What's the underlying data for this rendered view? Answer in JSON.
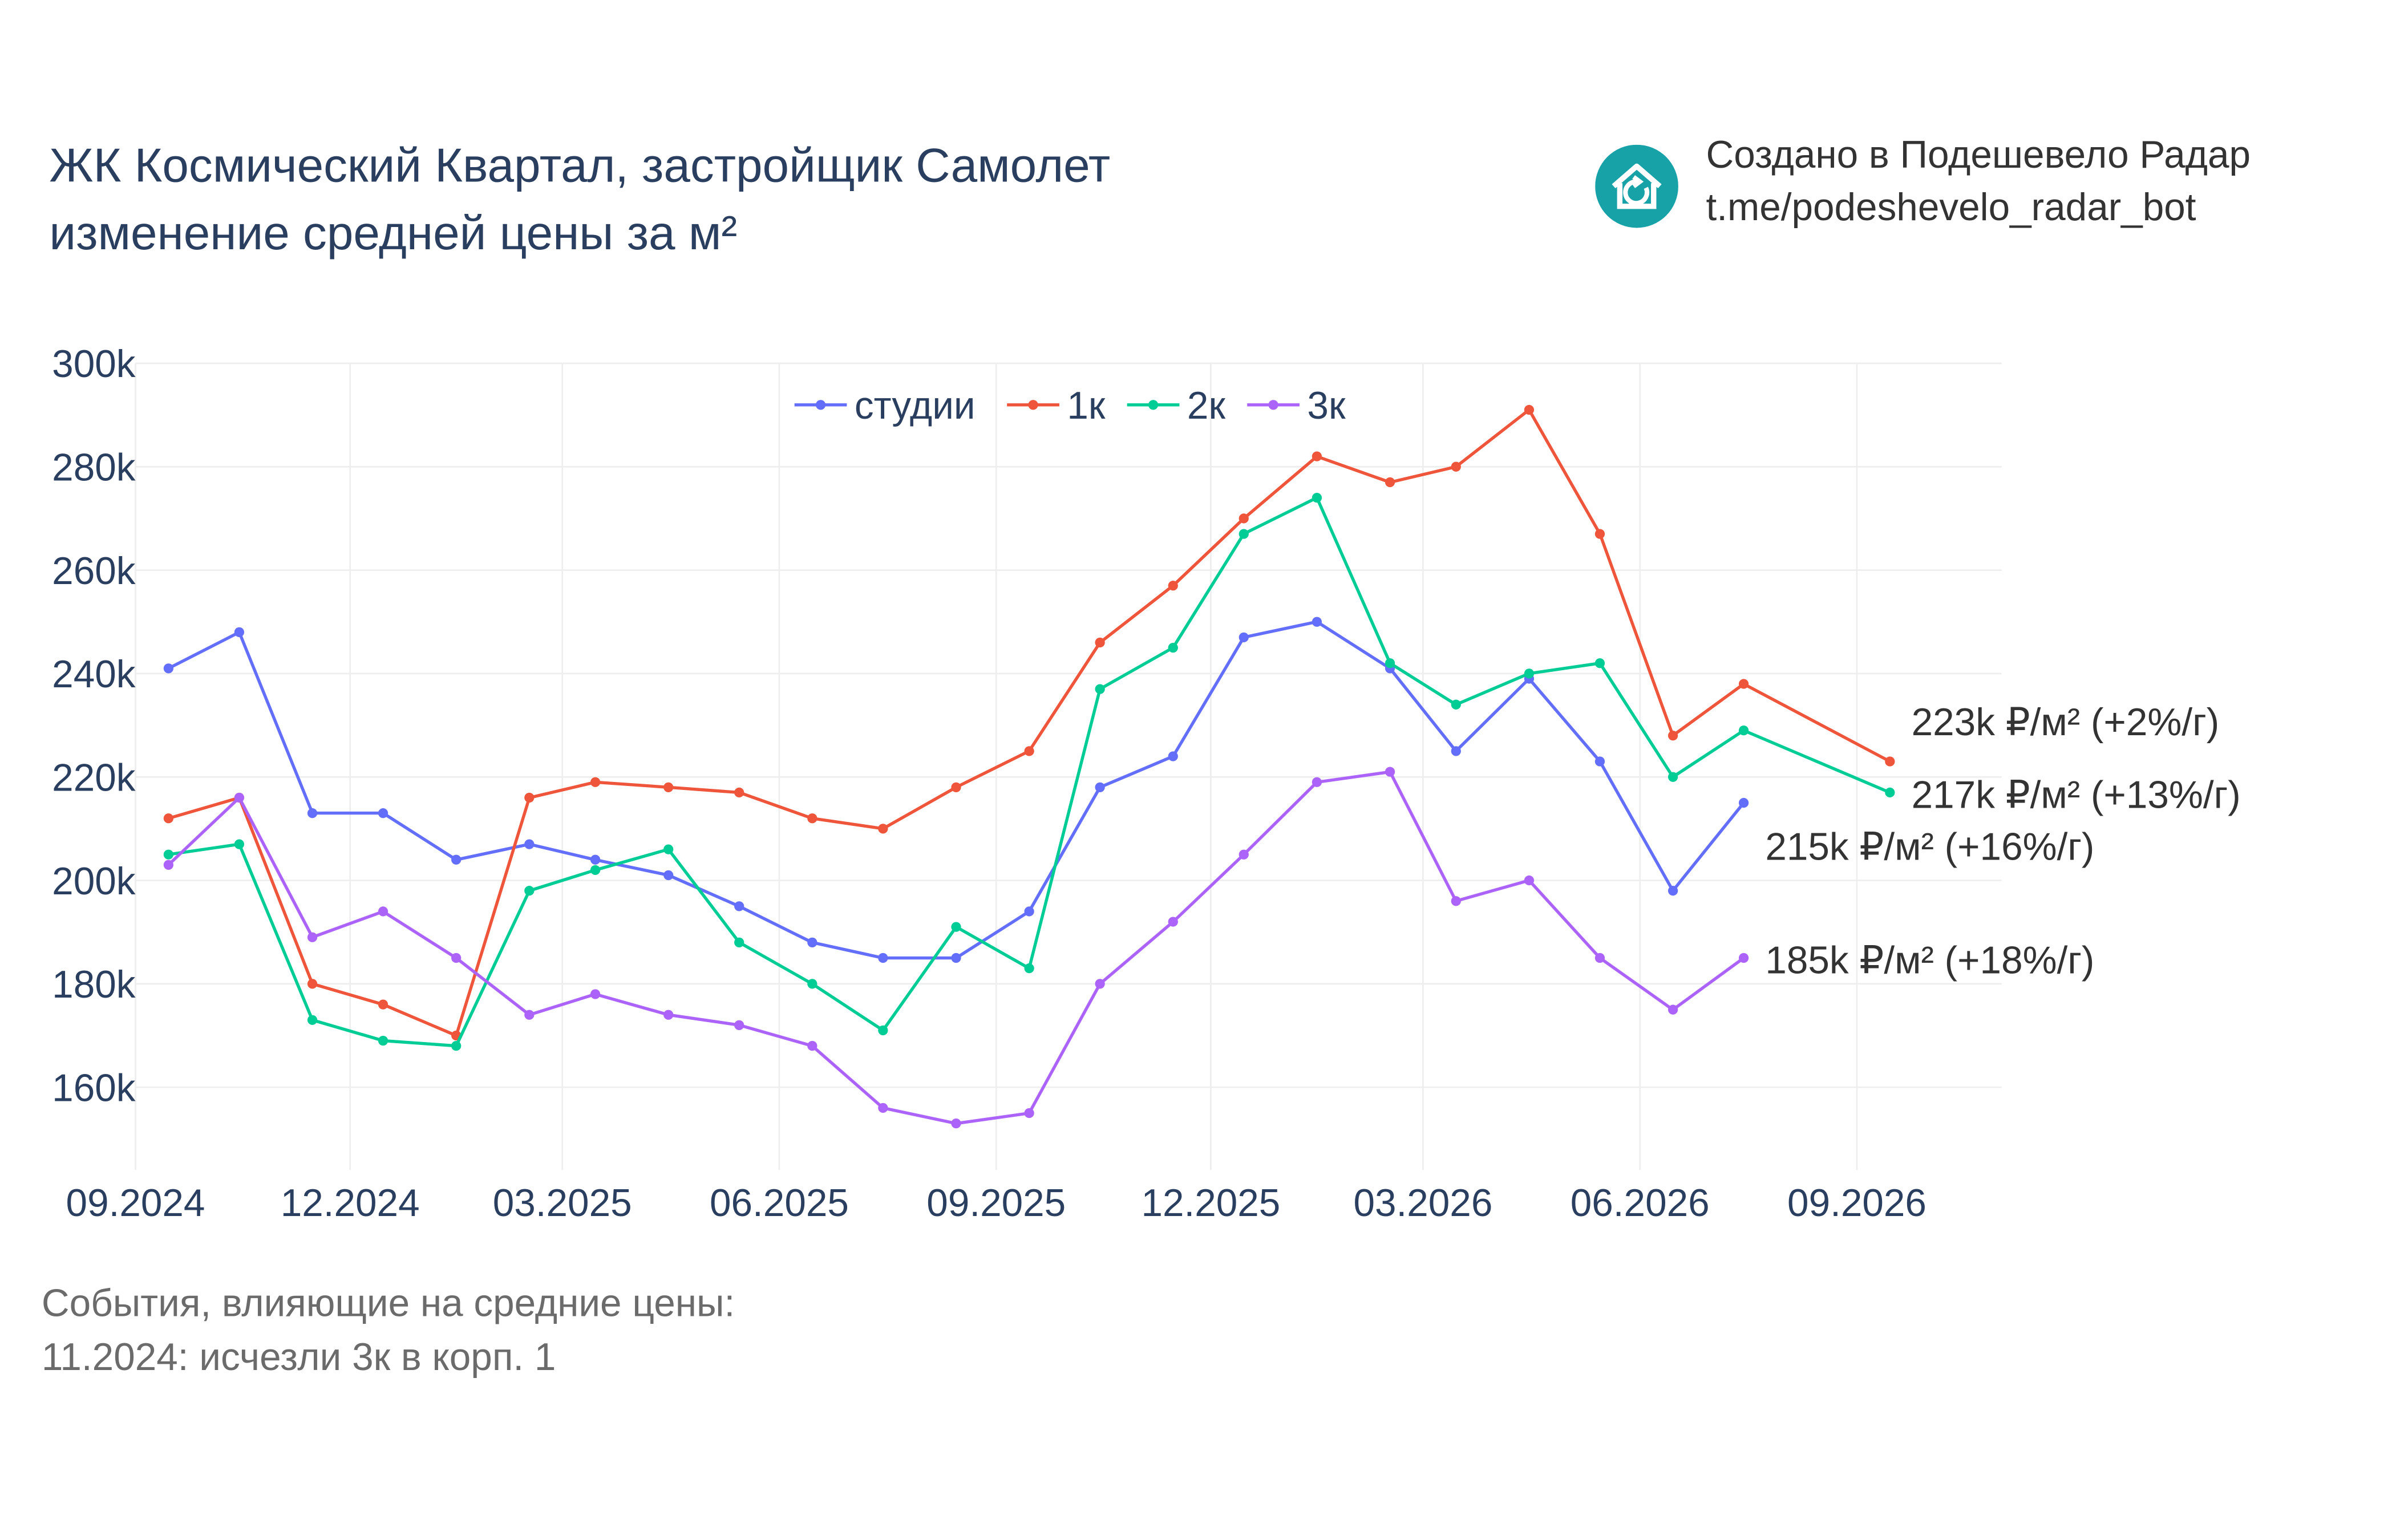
{
  "title": {
    "line1": "ЖК Космический Квартал, застройщик Самолет",
    "line2": "изменение средней цены за м²"
  },
  "brand": {
    "line1": "Создано в Подешевело Радар",
    "line2": "t.me/podeshevelo_radar_bot",
    "logo_icon": "house-refresh-icon",
    "color": "#17a2a8"
  },
  "events": {
    "heading": "События, влияющие на средние цены:",
    "items": [
      "11.2024: исчезли 3к в корп. 1"
    ]
  },
  "chart_data": {
    "type": "line",
    "x": [
      "2024-09-15",
      "2024-10-15",
      "2024-11-15",
      "2024-12-15",
      "2025-01-15",
      "2025-02-15",
      "2025-03-15",
      "2025-04-15",
      "2025-05-15",
      "2025-06-15",
      "2025-07-15",
      "2025-08-15",
      "2025-09-15",
      "2025-10-15",
      "2025-11-15",
      "2025-12-15",
      "2026-01-15",
      "2026-02-15",
      "2026-03-15",
      "2026-04-15",
      "2026-05-15",
      "2026-06-15",
      "2026-07-15",
      "2026-08-15",
      "2026-09-15"
    ],
    "x_ticks": [
      "09.2024",
      "12.2024",
      "03.2025",
      "06.2025",
      "09.2025",
      "12.2025",
      "03.2026",
      "06.2026",
      "09.2026"
    ],
    "y_ticks": [
      "300k",
      "280k",
      "260k",
      "240k",
      "220k",
      "200k",
      "180k",
      "160k"
    ],
    "y_tick_values": [
      300000,
      280000,
      260000,
      240000,
      220000,
      200000,
      180000,
      160000
    ],
    "xlim": [
      "2024-09-01",
      "2026-09-01"
    ],
    "ylim": [
      144000,
      300000
    ],
    "grid": true,
    "legend_position": "top-center",
    "series": [
      {
        "name": "студии",
        "color": "#636efa",
        "values": [
          241000,
          248000,
          213000,
          213000,
          204000,
          207000,
          204000,
          201000,
          195000,
          188000,
          185000,
          185000,
          194000,
          218000,
          224000,
          247000,
          250000,
          241000,
          225000,
          239000,
          223000,
          198000,
          215000,
          null,
          null
        ],
        "end_label": "215k ₽/м² (+16%/г)"
      },
      {
        "name": "1к",
        "color": "#ef553b",
        "values": [
          212000,
          216000,
          180000,
          176000,
          170000,
          216000,
          219000,
          218000,
          217000,
          212000,
          210000,
          218000,
          225000,
          246000,
          257000,
          270000,
          282000,
          277000,
          280000,
          291000,
          267000,
          228000,
          238000,
          null,
          223000
        ],
        "end_label": "223k ₽/м² (+2%/г)"
      },
      {
        "name": "2к",
        "color": "#00cc96",
        "values": [
          205000,
          207000,
          173000,
          169000,
          168000,
          198000,
          202000,
          206000,
          188000,
          180000,
          171000,
          191000,
          183000,
          237000,
          245000,
          267000,
          274000,
          242000,
          234000,
          240000,
          242000,
          220000,
          229000,
          null,
          217000
        ],
        "end_label": "217k ₽/м² (+13%/г)"
      },
      {
        "name": "3к",
        "color": "#ab63fa",
        "values": [
          203000,
          216000,
          189000,
          194000,
          185000,
          174000,
          178000,
          174000,
          172000,
          168000,
          156000,
          153000,
          155000,
          180000,
          192000,
          205000,
          219000,
          221000,
          196000,
          200000,
          185000,
          175000,
          185000,
          null,
          null
        ],
        "end_label": "185k ₽/м² (+18%/г)"
      }
    ]
  }
}
